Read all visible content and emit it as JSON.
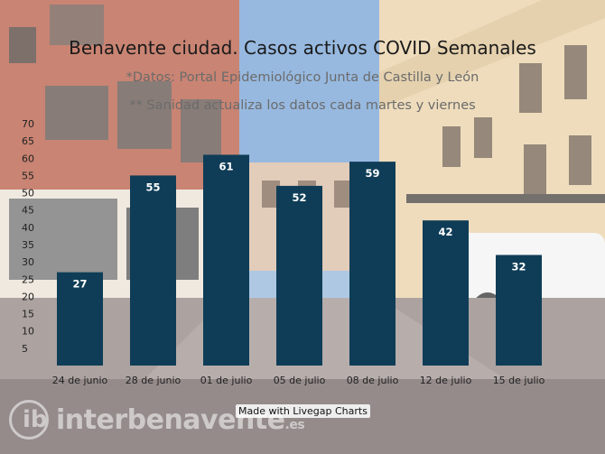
{
  "chart_data": {
    "type": "bar",
    "title": "Benavente ciudad. Casos activos COVID Semanales",
    "subtitle_lines": [
      "*Datos: Portal Epidemiológico Junta de Castilla y León",
      "** Sanidad actualiza los datos cada martes y viernes"
    ],
    "categories": [
      "24 de junio",
      "28 de junio",
      "01 de julio",
      "05 de julio",
      "08 de julio",
      "12 de julio",
      "15 de julio"
    ],
    "values": [
      27,
      55,
      61,
      52,
      59,
      42,
      32
    ],
    "ylim": [
      0,
      70
    ],
    "yticks": [
      5,
      10,
      15,
      20,
      25,
      30,
      35,
      40,
      45,
      50,
      55,
      60,
      65,
      70
    ],
    "bar_color": "#0f3d57",
    "value_label_color": "#ffffff",
    "grid": false,
    "legend": "none"
  },
  "credit": "Made with Livegap Charts",
  "watermark": {
    "text": "interbenavente",
    "tld": ".es"
  }
}
